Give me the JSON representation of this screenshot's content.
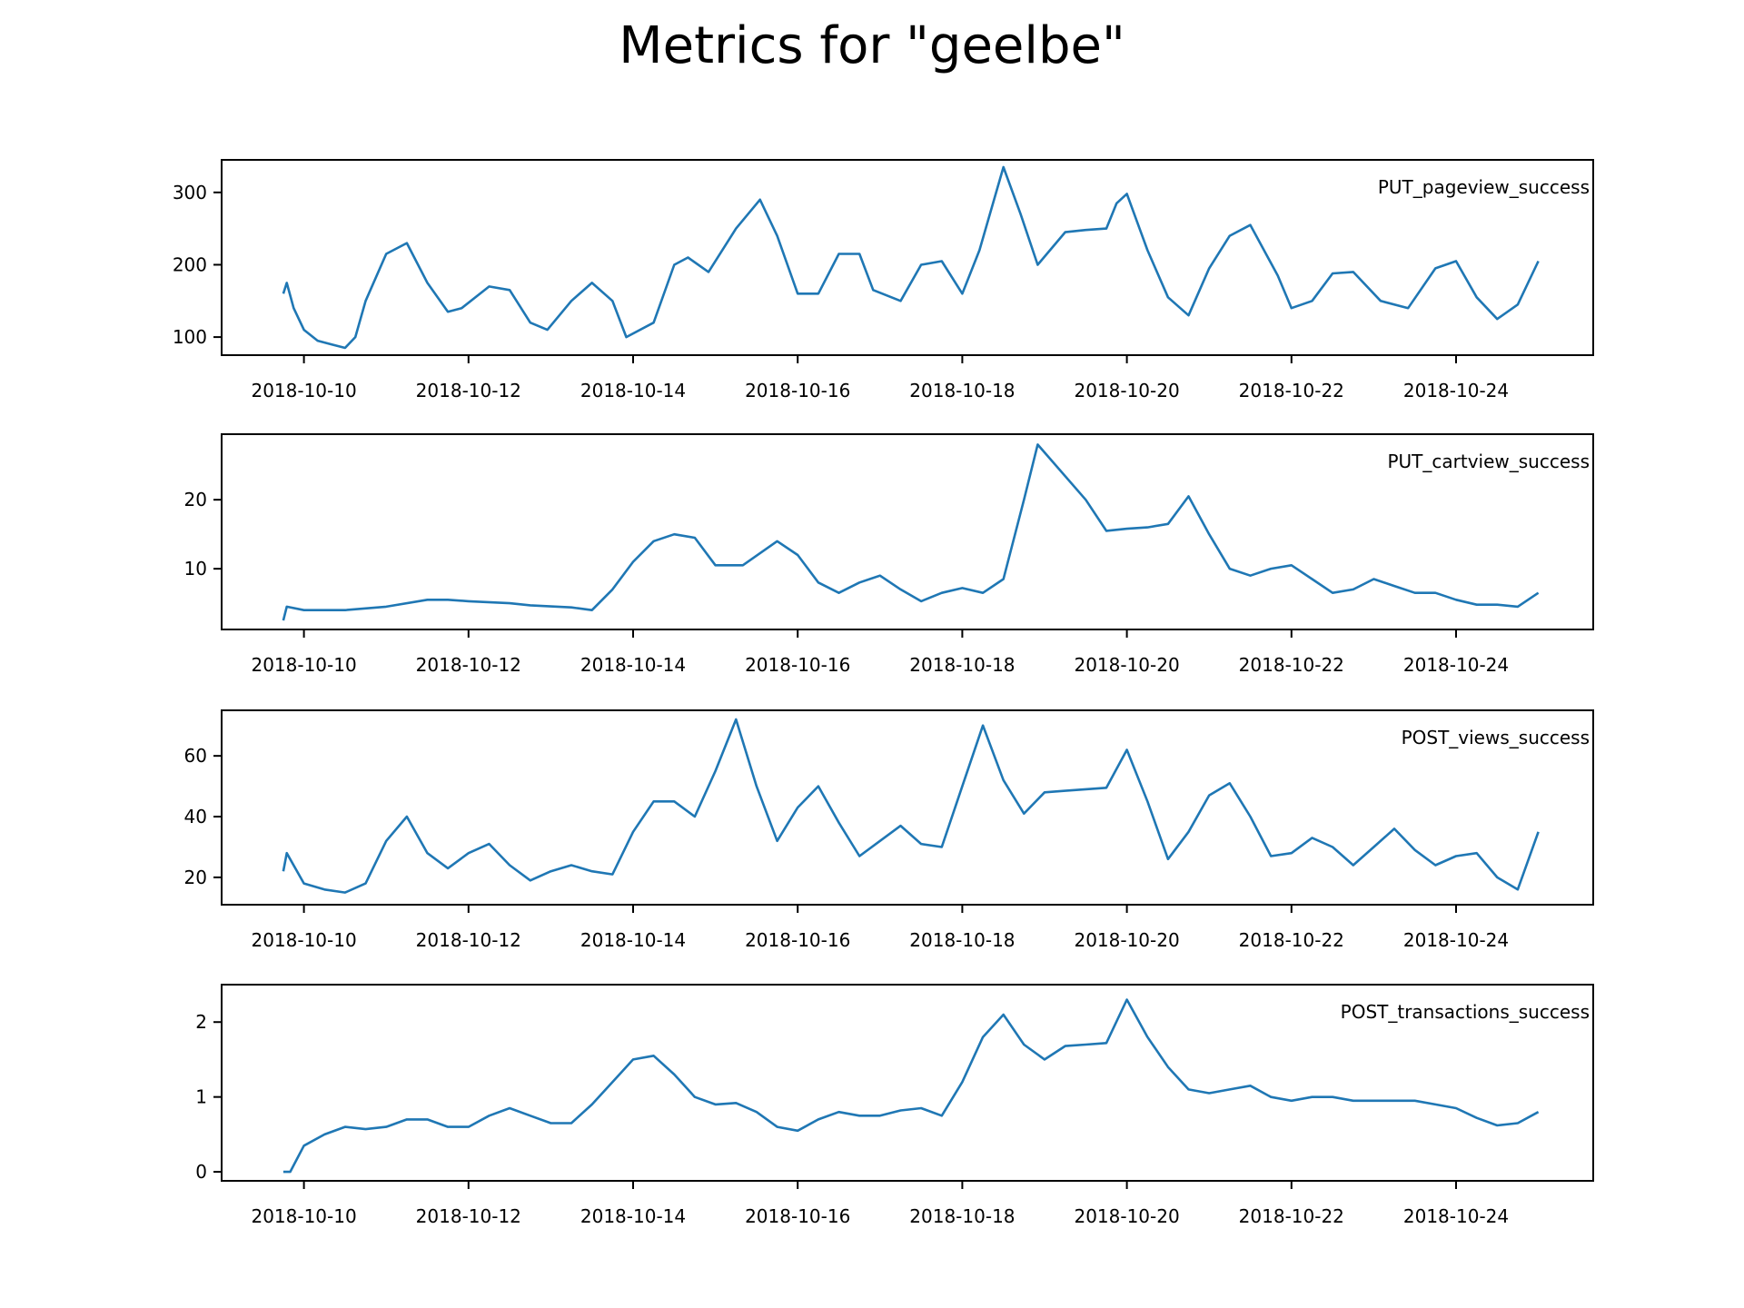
{
  "figure": {
    "title": "Metrics for \"geelbe\""
  },
  "chart_data": [
    {
      "type": "line",
      "series": [
        {
          "name": "PUT_pageview_success",
          "color": "#1f77b4",
          "x": [
            "2018-10-09 18:00",
            "2018-10-09 19:00",
            "2018-10-09 21:00",
            "2018-10-10 00:00",
            "2018-10-10 04:00",
            "2018-10-10 08:00",
            "2018-10-10 12:00",
            "2018-10-10 15:00",
            "2018-10-10 18:00",
            "2018-10-11 00:00",
            "2018-10-11 06:00",
            "2018-10-11 12:00",
            "2018-10-11 18:00",
            "2018-10-11 22:00",
            "2018-10-12 06:00",
            "2018-10-12 12:00",
            "2018-10-12 18:00",
            "2018-10-12 23:00",
            "2018-10-13 06:00",
            "2018-10-13 12:00",
            "2018-10-13 18:00",
            "2018-10-13 22:00",
            "2018-10-14 06:00",
            "2018-10-14 12:00",
            "2018-10-14 16:00",
            "2018-10-14 22:00",
            "2018-10-15 06:00",
            "2018-10-15 13:00",
            "2018-10-15 18:00",
            "2018-10-16 00:00",
            "2018-10-16 06:00",
            "2018-10-16 12:00",
            "2018-10-16 18:00",
            "2018-10-16 22:00",
            "2018-10-17 06:00",
            "2018-10-17 12:00",
            "2018-10-17 18:00",
            "2018-10-18 00:00",
            "2018-10-18 05:00",
            "2018-10-18 12:00",
            "2018-10-18 17:00",
            "2018-10-18 22:00",
            "2018-10-19 06:00",
            "2018-10-19 12:00",
            "2018-10-19 18:00",
            "2018-10-19 21:00",
            "2018-10-20 00:00",
            "2018-10-20 06:00",
            "2018-10-20 12:00",
            "2018-10-20 18:00",
            "2018-10-21 00:00",
            "2018-10-21 06:00",
            "2018-10-21 12:00",
            "2018-10-21 20:00",
            "2018-10-22 00:00",
            "2018-10-22 06:00",
            "2018-10-22 12:00",
            "2018-10-22 18:00",
            "2018-10-23 02:00",
            "2018-10-23 10:00",
            "2018-10-23 18:00",
            "2018-10-24 00:00",
            "2018-10-24 06:00",
            "2018-10-24 12:00",
            "2018-10-24 18:00",
            "2018-10-25 00:00"
          ],
          "y": [
            160,
            175,
            140,
            110,
            95,
            90,
            85,
            100,
            150,
            215,
            230,
            175,
            135,
            140,
            170,
            165,
            120,
            110,
            150,
            175,
            150,
            100,
            120,
            200,
            210,
            190,
            250,
            290,
            240,
            160,
            160,
            215,
            215,
            165,
            150,
            200,
            205,
            160,
            220,
            335,
            270,
            200,
            245,
            248,
            250,
            285,
            298,
            220,
            155,
            130,
            195,
            240,
            255,
            185,
            140,
            150,
            188,
            190,
            150,
            140,
            195,
            205,
            155,
            125,
            145,
            205
          ]
        }
      ],
      "ylim": [
        75,
        345
      ],
      "yticks": [
        100,
        200,
        300
      ]
    },
    {
      "type": "line",
      "series": [
        {
          "name": "PUT_cartview_success",
          "color": "#1f77b4",
          "x": [
            "2018-10-09 18:00",
            "2018-10-09 19:00",
            "2018-10-10 00:00",
            "2018-10-10 12:00",
            "2018-10-11 00:00",
            "2018-10-11 12:00",
            "2018-10-11 18:00",
            "2018-10-12 00:00",
            "2018-10-12 12:00",
            "2018-10-12 18:00",
            "2018-10-13 06:00",
            "2018-10-13 12:00",
            "2018-10-13 18:00",
            "2018-10-14 00:00",
            "2018-10-14 06:00",
            "2018-10-14 12:00",
            "2018-10-14 18:00",
            "2018-10-15 00:00",
            "2018-10-15 08:00",
            "2018-10-15 18:00",
            "2018-10-16 00:00",
            "2018-10-16 06:00",
            "2018-10-16 12:00",
            "2018-10-16 18:00",
            "2018-10-17 00:00",
            "2018-10-17 06:00",
            "2018-10-17 12:00",
            "2018-10-17 18:00",
            "2018-10-18 00:00",
            "2018-10-18 06:00",
            "2018-10-18 12:00",
            "2018-10-18 18:00",
            "2018-10-18 22:00",
            "2018-10-19 12:00",
            "2018-10-19 18:00",
            "2018-10-20 00:00",
            "2018-10-20 06:00",
            "2018-10-20 12:00",
            "2018-10-20 18:00",
            "2018-10-21 00:00",
            "2018-10-21 06:00",
            "2018-10-21 12:00",
            "2018-10-21 18:00",
            "2018-10-22 00:00",
            "2018-10-22 06:00",
            "2018-10-22 12:00",
            "2018-10-22 18:00",
            "2018-10-23 00:00",
            "2018-10-23 06:00",
            "2018-10-23 12:00",
            "2018-10-23 18:00",
            "2018-10-24 00:00",
            "2018-10-24 06:00",
            "2018-10-24 12:00",
            "2018-10-24 18:00",
            "2018-10-25 00:00"
          ],
          "y": [
            2.5,
            4.5,
            4,
            4,
            4.5,
            5.5,
            5.5,
            5.3,
            5,
            4.7,
            4.4,
            4,
            7,
            11,
            14,
            15,
            14.5,
            10.5,
            10.5,
            14,
            12,
            8,
            6.5,
            8,
            9,
            7,
            5.3,
            6.5,
            7.2,
            6.5,
            8.5,
            20,
            28,
            20,
            15.5,
            15.8,
            16,
            16.5,
            20.5,
            15,
            10,
            9,
            10,
            10.5,
            8.5,
            6.5,
            7,
            8.5,
            7.5,
            6.5,
            6.5,
            5.5,
            4.8,
            4.8,
            4.5,
            6.5
          ]
        }
      ],
      "ylim": [
        1.2,
        29.5
      ],
      "yticks": [
        10,
        20
      ]
    },
    {
      "type": "line",
      "series": [
        {
          "name": "POST_views_success",
          "color": "#1f77b4",
          "x": [
            "2018-10-09 18:00",
            "2018-10-09 19:00",
            "2018-10-10 00:00",
            "2018-10-10 06:00",
            "2018-10-10 12:00",
            "2018-10-10 18:00",
            "2018-10-11 00:00",
            "2018-10-11 06:00",
            "2018-10-11 12:00",
            "2018-10-11 18:00",
            "2018-10-12 00:00",
            "2018-10-12 06:00",
            "2018-10-12 12:00",
            "2018-10-12 18:00",
            "2018-10-13 00:00",
            "2018-10-13 06:00",
            "2018-10-13 12:00",
            "2018-10-13 18:00",
            "2018-10-14 00:00",
            "2018-10-14 06:00",
            "2018-10-14 12:00",
            "2018-10-14 18:00",
            "2018-10-15 00:00",
            "2018-10-15 06:00",
            "2018-10-15 12:00",
            "2018-10-15 18:00",
            "2018-10-16 00:00",
            "2018-10-16 06:00",
            "2018-10-16 12:00",
            "2018-10-16 18:00",
            "2018-10-17 00:00",
            "2018-10-17 06:00",
            "2018-10-17 12:00",
            "2018-10-17 18:00",
            "2018-10-18 00:00",
            "2018-10-18 06:00",
            "2018-10-18 12:00",
            "2018-10-18 18:00",
            "2018-10-19 00:00",
            "2018-10-19 06:00",
            "2018-10-19 12:00",
            "2018-10-19 18:00",
            "2018-10-20 00:00",
            "2018-10-20 06:00",
            "2018-10-20 12:00",
            "2018-10-20 18:00",
            "2018-10-21 00:00",
            "2018-10-21 06:00",
            "2018-10-21 12:00",
            "2018-10-21 18:00",
            "2018-10-22 00:00",
            "2018-10-22 06:00",
            "2018-10-22 12:00",
            "2018-10-22 18:00",
            "2018-10-23 00:00",
            "2018-10-23 06:00",
            "2018-10-23 12:00",
            "2018-10-23 18:00",
            "2018-10-24 00:00",
            "2018-10-24 06:00",
            "2018-10-24 12:00",
            "2018-10-24 18:00",
            "2018-10-25 00:00"
          ],
          "y": [
            22,
            28,
            18,
            16,
            15,
            18,
            32,
            40,
            28,
            23,
            28,
            31,
            24,
            19,
            22,
            24,
            22,
            21,
            35,
            45,
            45,
            40,
            55,
            72,
            50,
            32,
            43,
            50,
            38,
            27,
            32,
            37,
            31,
            30,
            50,
            70,
            52,
            41,
            48,
            48.5,
            49,
            49.5,
            62,
            45,
            26,
            35,
            47,
            51,
            40,
            27,
            28,
            33,
            30,
            24,
            30,
            36,
            29,
            24,
            27,
            28,
            20,
            16,
            35
          ]
        }
      ],
      "ylim": [
        11,
        75
      ],
      "yticks": [
        20,
        40,
        60
      ]
    },
    {
      "type": "line",
      "series": [
        {
          "name": "POST_transactions_success",
          "color": "#1f77b4",
          "x": [
            "2018-10-09 18:00",
            "2018-10-09 20:00",
            "2018-10-10 00:00",
            "2018-10-10 06:00",
            "2018-10-10 12:00",
            "2018-10-10 18:00",
            "2018-10-11 00:00",
            "2018-10-11 06:00",
            "2018-10-11 12:00",
            "2018-10-11 18:00",
            "2018-10-12 00:00",
            "2018-10-12 06:00",
            "2018-10-12 12:00",
            "2018-10-12 18:00",
            "2018-10-13 00:00",
            "2018-10-13 06:00",
            "2018-10-13 12:00",
            "2018-10-13 18:00",
            "2018-10-14 00:00",
            "2018-10-14 06:00",
            "2018-10-14 12:00",
            "2018-10-14 18:00",
            "2018-10-15 00:00",
            "2018-10-15 06:00",
            "2018-10-15 12:00",
            "2018-10-15 18:00",
            "2018-10-16 00:00",
            "2018-10-16 06:00",
            "2018-10-16 12:00",
            "2018-10-16 18:00",
            "2018-10-17 00:00",
            "2018-10-17 06:00",
            "2018-10-17 12:00",
            "2018-10-17 18:00",
            "2018-10-18 00:00",
            "2018-10-18 06:00",
            "2018-10-18 12:00",
            "2018-10-18 18:00",
            "2018-10-19 00:00",
            "2018-10-19 06:00",
            "2018-10-19 12:00",
            "2018-10-19 18:00",
            "2018-10-20 00:00",
            "2018-10-20 06:00",
            "2018-10-20 12:00",
            "2018-10-20 18:00",
            "2018-10-21 00:00",
            "2018-10-21 06:00",
            "2018-10-21 12:00",
            "2018-10-21 18:00",
            "2018-10-22 00:00",
            "2018-10-22 06:00",
            "2018-10-22 12:00",
            "2018-10-22 18:00",
            "2018-10-23 00:00",
            "2018-10-23 06:00",
            "2018-10-23 12:00",
            "2018-10-23 18:00",
            "2018-10-24 00:00",
            "2018-10-24 06:00",
            "2018-10-24 12:00",
            "2018-10-24 18:00",
            "2018-10-25 00:00"
          ],
          "y": [
            0,
            0,
            0.35,
            0.5,
            0.6,
            0.57,
            0.6,
            0.7,
            0.7,
            0.6,
            0.6,
            0.75,
            0.85,
            0.75,
            0.65,
            0.65,
            0.9,
            1.2,
            1.5,
            1.55,
            1.3,
            1.0,
            0.9,
            0.92,
            0.8,
            0.6,
            0.55,
            0.7,
            0.8,
            0.75,
            0.75,
            0.82,
            0.85,
            0.75,
            1.2,
            1.8,
            2.1,
            1.7,
            1.5,
            1.68,
            1.7,
            1.72,
            2.3,
            1.8,
            1.4,
            1.1,
            1.05,
            1.1,
            1.15,
            1.0,
            0.95,
            1.0,
            1.0,
            0.95,
            0.95,
            0.95,
            0.95,
            0.9,
            0.85,
            0.72,
            0.62,
            0.65,
            0.8
          ]
        }
      ],
      "ylim": [
        -0.12,
        2.5
      ],
      "yticks": [
        0,
        1,
        2
      ]
    }
  ],
  "xaxis": {
    "range": [
      "2018-10-09 00:00",
      "2018-10-25 16:00"
    ],
    "ticks": [
      "2018-10-10",
      "2018-10-12",
      "2018-10-14",
      "2018-10-16",
      "2018-10-18",
      "2018-10-20",
      "2018-10-22",
      "2018-10-24"
    ]
  }
}
